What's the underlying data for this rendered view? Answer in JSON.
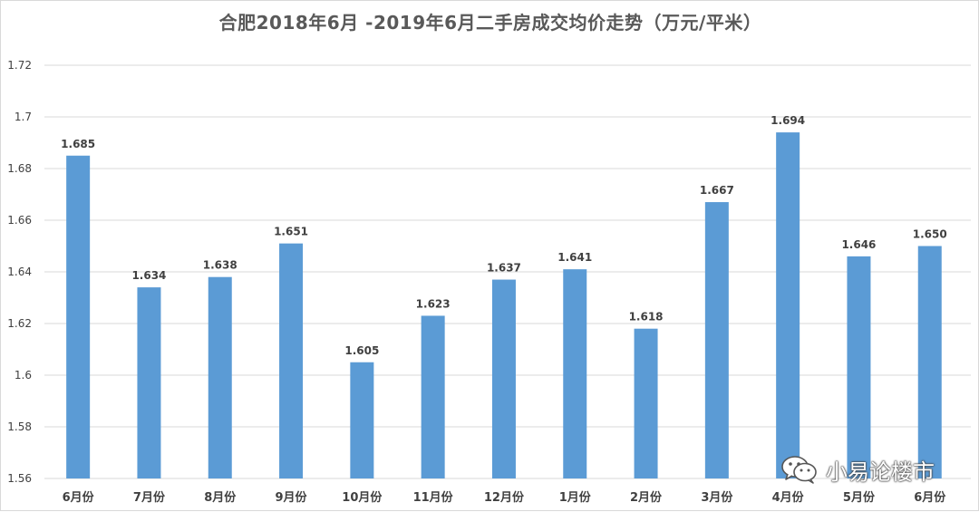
{
  "chart_data": {
    "type": "bar",
    "title": "合肥2018年6月 -2019年6月二手房成交均价走势（万元/平米）",
    "xlabel": "",
    "ylabel": "",
    "categories": [
      "6月份",
      "7月份",
      "8月份",
      "9月份",
      "10月份",
      "11月份",
      "12月份",
      "1月份",
      "2月份",
      "3月份",
      "4月份",
      "5月份",
      "6月份"
    ],
    "values": [
      1.685,
      1.634,
      1.638,
      1.651,
      1.605,
      1.623,
      1.637,
      1.641,
      1.618,
      1.667,
      1.694,
      1.646,
      1.65
    ],
    "value_labels": [
      "1.685",
      "1.634",
      "1.638",
      "1.651",
      "1.605",
      "1.623",
      "1.637",
      "1.641",
      "1.618",
      "1.667",
      "1.694",
      "1.646",
      "1.650"
    ],
    "ylim": [
      1.56,
      1.72
    ],
    "yticks": [
      "1.56",
      "1.58",
      "1.6",
      "1.62",
      "1.64",
      "1.66",
      "1.68",
      "1.7",
      "1.72"
    ],
    "grid": true,
    "legend": "none",
    "bar_color": "#5b9bd5",
    "grid_color": "#d9d9d9"
  },
  "watermark": {
    "text": "小易论楼市",
    "icon": "wechat-icon"
  }
}
